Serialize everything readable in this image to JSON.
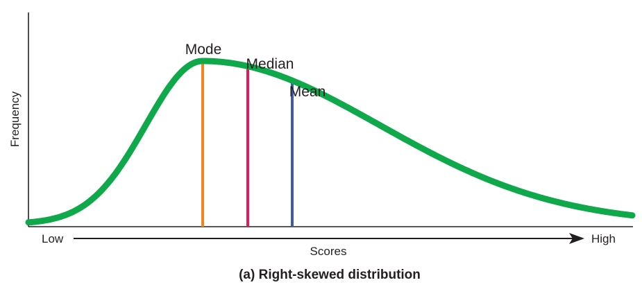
{
  "diagram": {
    "y_axis_label": "Frequency",
    "x_axis_label": "Scores",
    "x_axis_low": "Low",
    "x_axis_high": "High",
    "caption": "(a) Right-skewed distribution",
    "curve_color": "#0fa84a",
    "markers": [
      {
        "label": "Mode",
        "color": "#f58220"
      },
      {
        "label": "Median",
        "color": "#e3195a"
      },
      {
        "label": "Mean",
        "color": "#3f5aa8"
      }
    ]
  }
}
